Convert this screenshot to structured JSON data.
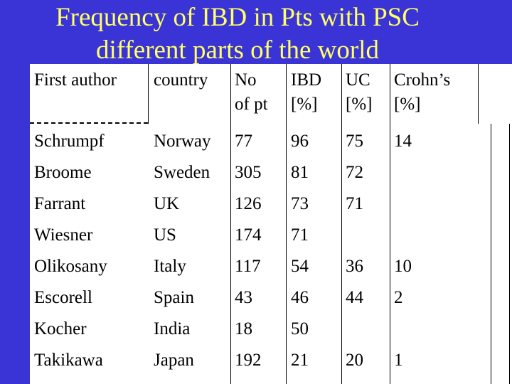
{
  "title": {
    "line1": "Frequency of IBD in Pts with PSC",
    "line2": "different parts of the world"
  },
  "header": {
    "first_author": "First   author",
    "country": "country",
    "no_line1": "No",
    "no_line2": "of pt",
    "ibd_line1": "IBD",
    "ibd_line2": "[%]",
    "uc_line1": "UC",
    "uc_line2": "[%]",
    "crohns_line1": "Crohn’s",
    "crohns_line2": "[%]"
  },
  "rows": [
    {
      "author": "Schrumpf",
      "country": "Norway",
      "no": "77",
      "ibd": "96",
      "uc": "75",
      "crohns": "14"
    },
    {
      "author": "Broome",
      "country": "Sweden",
      "no": "305",
      "ibd": "81",
      "uc": "72",
      "crohns": ""
    },
    {
      "author": "Farrant",
      "country": "UK",
      "no": "126",
      "ibd": "73",
      "uc": "71",
      "crohns": ""
    },
    {
      "author": "Wiesner",
      "country": "US",
      "no": "174",
      "ibd": "71",
      "uc": "",
      "crohns": ""
    },
    {
      "author": "Olikosany",
      "country": "Italy",
      "no": "117",
      "ibd": "54",
      "uc": "36",
      "crohns": "10"
    },
    {
      "author": "Escorell",
      "country": "Spain",
      "no": "43",
      "ibd": "46",
      "uc": "44",
      "crohns": "2"
    },
    {
      "author": "Kocher",
      "country": "India",
      "no": "18",
      "ibd": "50",
      "uc": "",
      "crohns": ""
    },
    {
      "author": "Takikawa",
      "country": "Japan",
      "no": "192",
      "ibd": "21",
      "uc": "20",
      "crohns": "1"
    }
  ],
  "colors": {
    "background": "#3a33d6",
    "title": "#ffff66",
    "table_bg": "#ffffff",
    "text": "#000000"
  }
}
